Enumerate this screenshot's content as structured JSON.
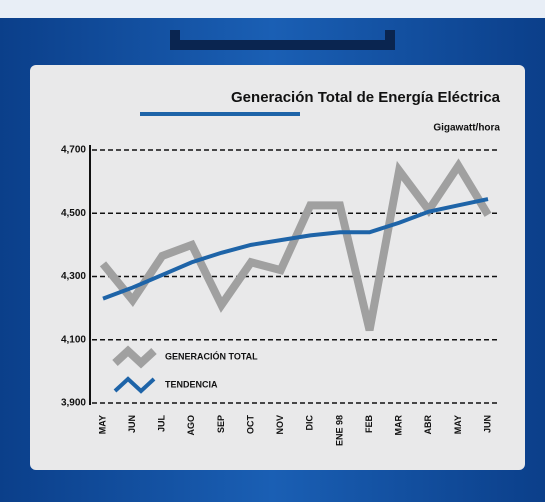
{
  "chart_data": {
    "type": "line",
    "title": "Generación Total de Energía Eléctrica",
    "subtitle": "Gigawatt/hora",
    "categories": [
      "MAY",
      "JUN",
      "JUL",
      "AGO",
      "SEP",
      "OCT",
      "NOV",
      "DIC",
      "ENE 98",
      "FEB",
      "MAR",
      "ABR",
      "MAY",
      "JUN"
    ],
    "series": [
      {
        "name": "GENERACIÓN TOTAL",
        "color": "#a0a0a0",
        "values": [
          4340,
          4225,
          4365,
          4400,
          4210,
          4345,
          4320,
          4525,
          4525,
          4130,
          4635,
          4510,
          4650,
          4495
        ]
      },
      {
        "name": "TENDENCIA",
        "color": "#1e64a8",
        "values": [
          4230,
          4265,
          4305,
          4345,
          4375,
          4400,
          4415,
          4430,
          4440,
          4440,
          4470,
          4505,
          4525,
          4545
        ]
      }
    ],
    "ylim": [
      3900,
      4700
    ],
    "yticks": [
      {
        "value": 3900,
        "label": "3,900"
      },
      {
        "value": 4100,
        "label": "4,100"
      },
      {
        "value": 4300,
        "label": "4,300"
      },
      {
        "value": 4500,
        "label": "4,500"
      },
      {
        "value": 4700,
        "label": "4,700"
      }
    ],
    "grid": true
  }
}
